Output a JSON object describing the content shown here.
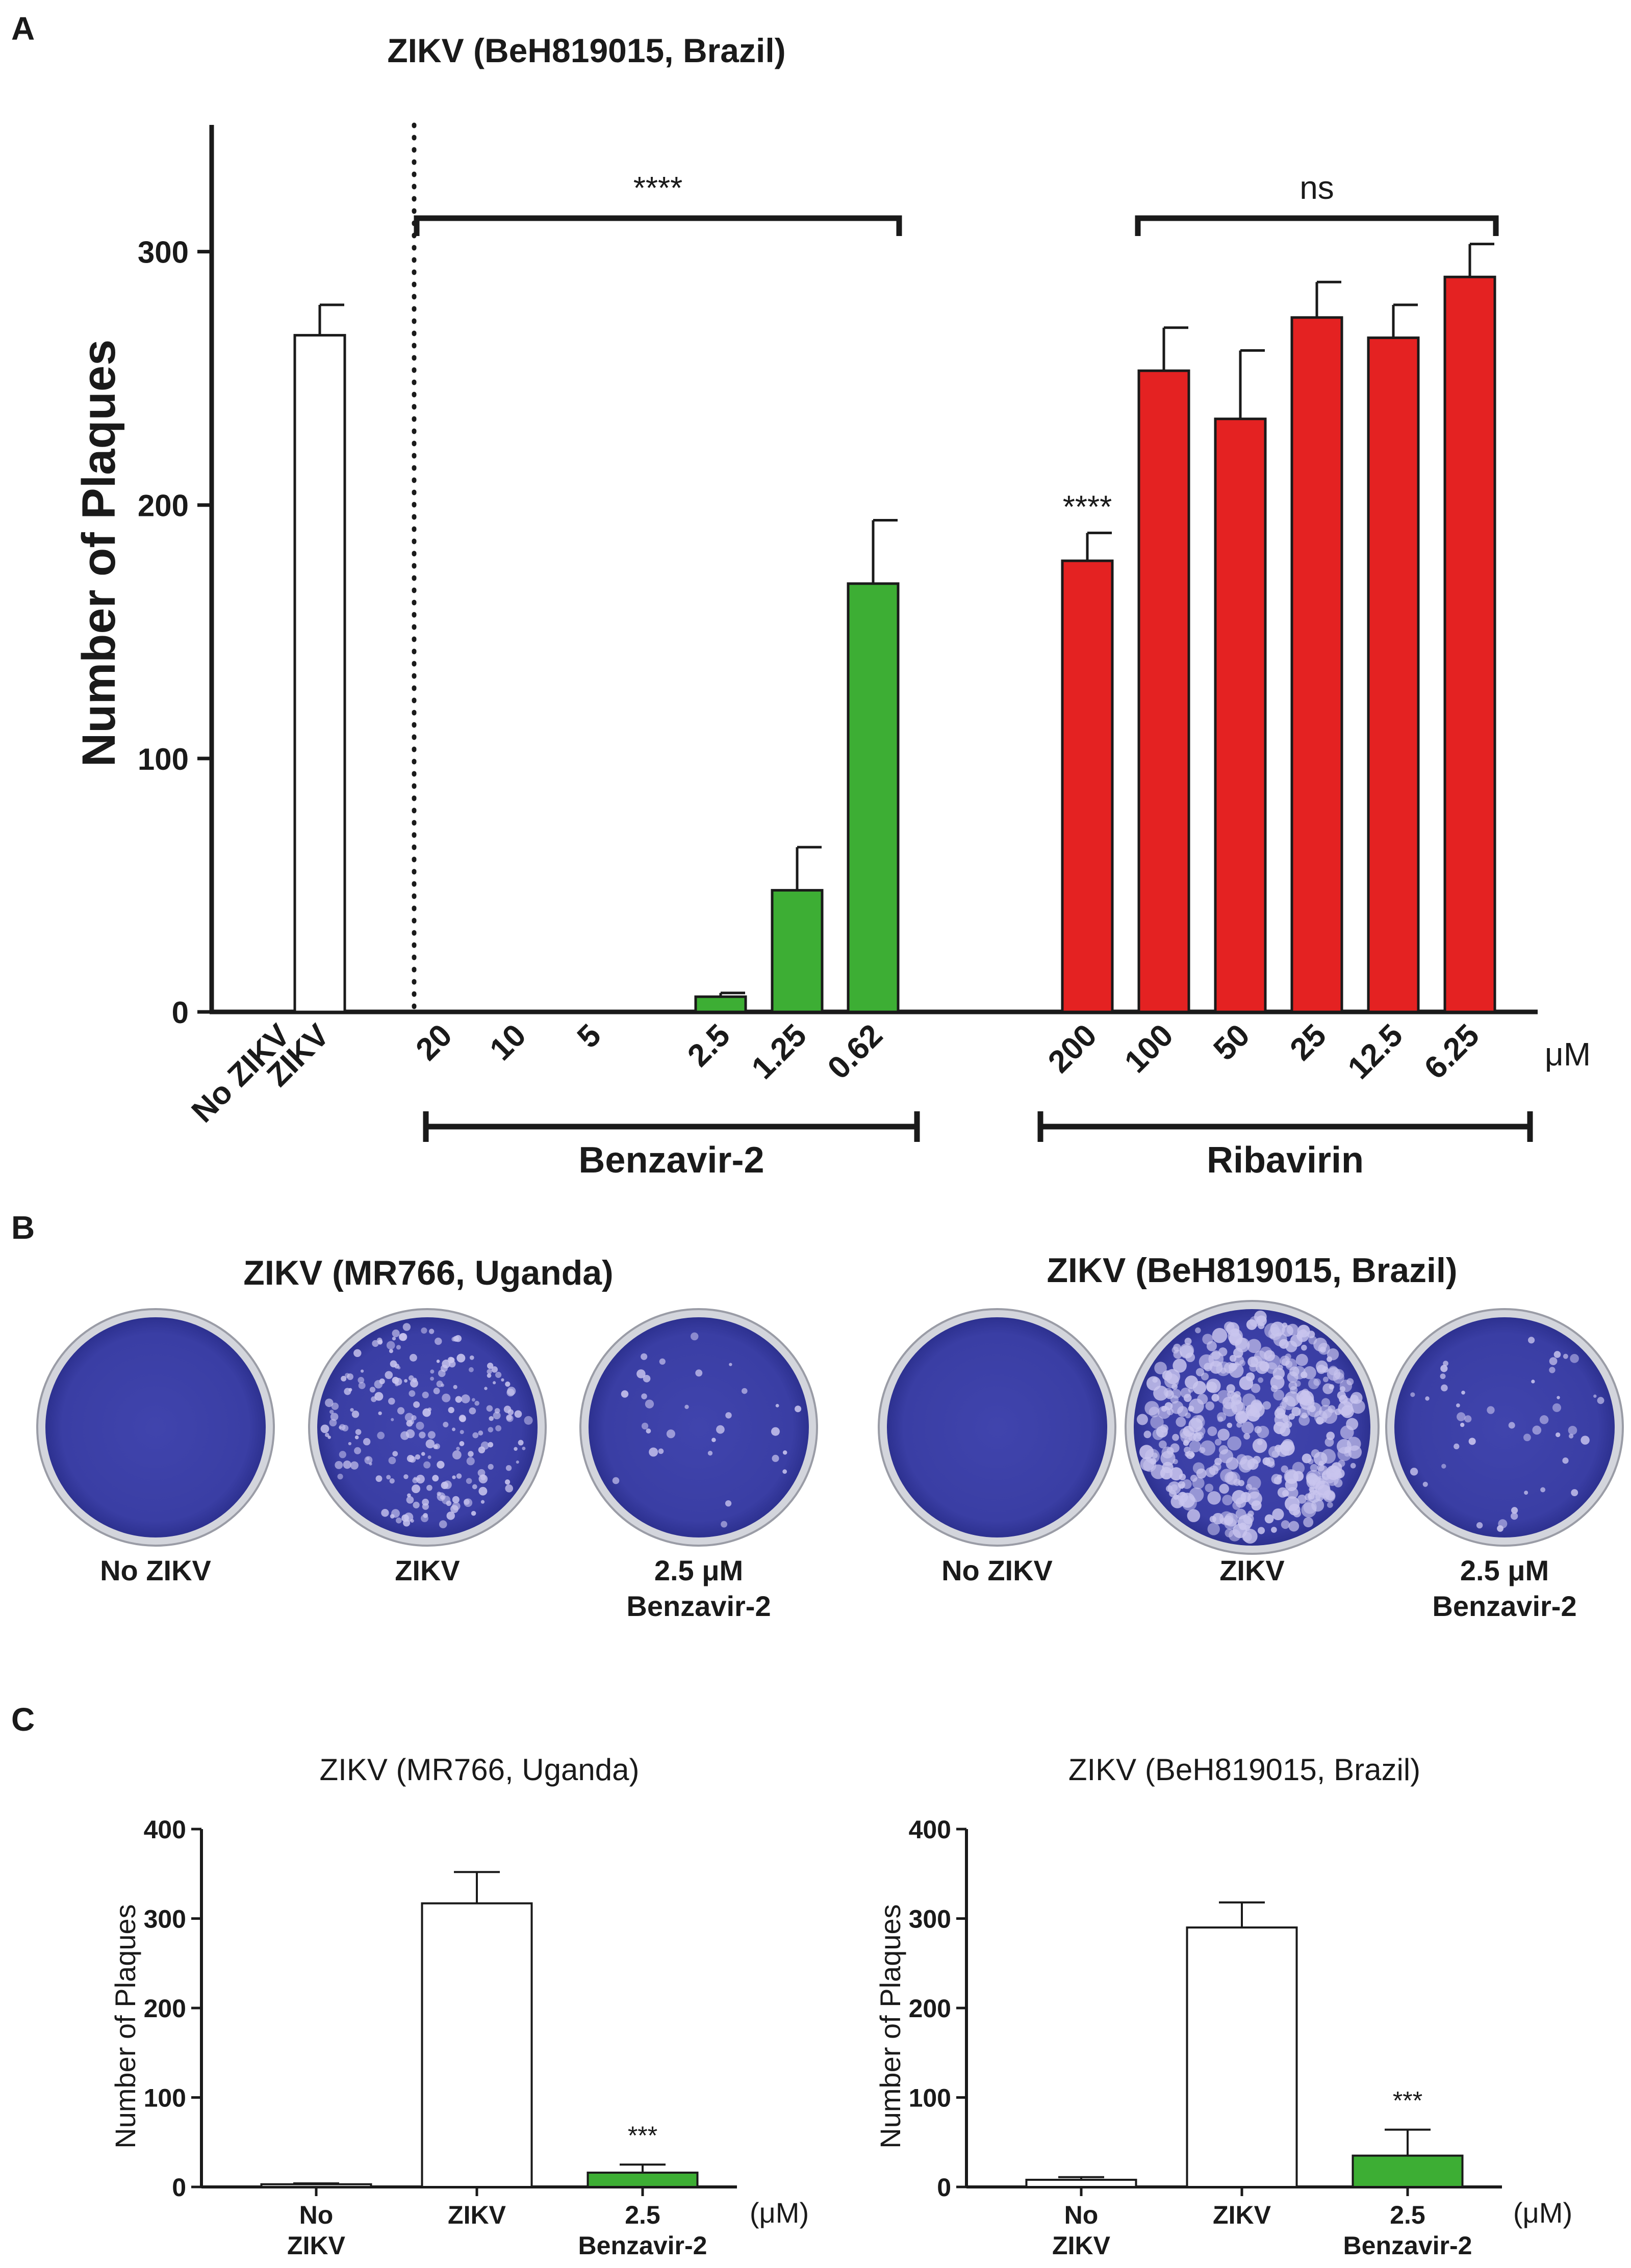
{
  "colors": {
    "green": "#3dae34",
    "red": "#e42222",
    "white": "#ffffff",
    "axis": "#1a1a1a",
    "plate_dye": "#3b3fa6",
    "plate_dark": "#2b2f8f",
    "plaque": "#c9c5ee",
    "rim": "#d3d5dc"
  },
  "panels": {
    "a": {
      "letter": "A"
    },
    "b": {
      "letter": "B",
      "groups": [
        {
          "title": "ZIKV (MR766, Uganda)",
          "plates": [
            {
              "label1": "No ZIKV",
              "label2": "",
              "plaque_density": 0
            },
            {
              "label1": "ZIKV",
              "label2": "",
              "plaque_density": 220
            },
            {
              "label1": "2.5 μM",
              "label2": "Benzavir-2",
              "plaque_density": 30
            }
          ]
        },
        {
          "title": "ZIKV (BeH819015, Brazil)",
          "plates": [
            {
              "label1": "No ZIKV",
              "label2": "",
              "plaque_density": 0
            },
            {
              "label1": "ZIKV",
              "label2": "",
              "plaque_density": 420
            },
            {
              "label1": "2.5 μM",
              "label2": "Benzavir-2",
              "plaque_density": 45
            }
          ]
        }
      ]
    },
    "c": {
      "letter": "C"
    }
  },
  "chart_data": [
    {
      "id": "A",
      "type": "bar",
      "title": "ZIKV (BeH819015, Brazil)",
      "ylabel": "Number of Plaques",
      "ylim": [
        0,
        350
      ],
      "yticks": [
        0,
        100,
        200,
        300
      ],
      "unit_label": "μM",
      "categories": [
        "No ZIKV",
        "ZIKV",
        "20",
        "10",
        "5",
        "2.5",
        "1.25",
        "0.62",
        "200",
        "100",
        "50",
        "25",
        "12.5",
        "6.25"
      ],
      "values": [
        0,
        267,
        0,
        0,
        0,
        6,
        48,
        169,
        178,
        253,
        234,
        274,
        266,
        290
      ],
      "errors": [
        0,
        12,
        0,
        0,
        0,
        1.5,
        17,
        25,
        11,
        17,
        27,
        14,
        13,
        13
      ],
      "bar_colors": [
        "white",
        "white",
        "green",
        "green",
        "green",
        "green",
        "green",
        "green",
        "red",
        "red",
        "red",
        "red",
        "red",
        "red"
      ],
      "groups": [
        {
          "label": "Benzavir-2",
          "from": 2,
          "to": 7
        },
        {
          "label": "Ribavirin",
          "from": 8,
          "to": 13
        }
      ],
      "brackets": [
        {
          "label": "****",
          "from": 2,
          "to": 7
        },
        {
          "label": "ns",
          "from": 9,
          "to": 13
        }
      ],
      "bar_annotations": [
        {
          "index": 8,
          "label": "****"
        }
      ]
    },
    {
      "id": "C1",
      "type": "bar",
      "title": "ZIKV (MR766, Uganda)",
      "ylabel": "Number of Plaques",
      "ylim": [
        0,
        400
      ],
      "yticks": [
        0,
        100,
        200,
        300,
        400
      ],
      "unit_label": "(μM)",
      "categories": [
        {
          "line1": "No",
          "line2": "ZIKV"
        },
        {
          "line1": "ZIKV",
          "line2": ""
        },
        {
          "line1": "2.5",
          "line2": "Benzavir-2"
        }
      ],
      "values": [
        3,
        317,
        16
      ],
      "errors": [
        1,
        35,
        9
      ],
      "bar_colors": [
        "white",
        "white",
        "green"
      ],
      "bar_annotations": [
        {
          "index": 2,
          "label": "***"
        }
      ]
    },
    {
      "id": "C2",
      "type": "bar",
      "title": "ZIKV (BeH819015, Brazil)",
      "ylabel": "Number of Plaques",
      "ylim": [
        0,
        400
      ],
      "yticks": [
        0,
        100,
        200,
        300,
        400
      ],
      "unit_label": "(μM)",
      "categories": [
        {
          "line1": "No",
          "line2": "ZIKV"
        },
        {
          "line1": "ZIKV",
          "line2": ""
        },
        {
          "line1": "2.5",
          "line2": "Benzavir-2"
        }
      ],
      "values": [
        8,
        290,
        35
      ],
      "errors": [
        3,
        28,
        29
      ],
      "bar_colors": [
        "white",
        "white",
        "green"
      ],
      "bar_annotations": [
        {
          "index": 2,
          "label": "***"
        }
      ]
    }
  ]
}
